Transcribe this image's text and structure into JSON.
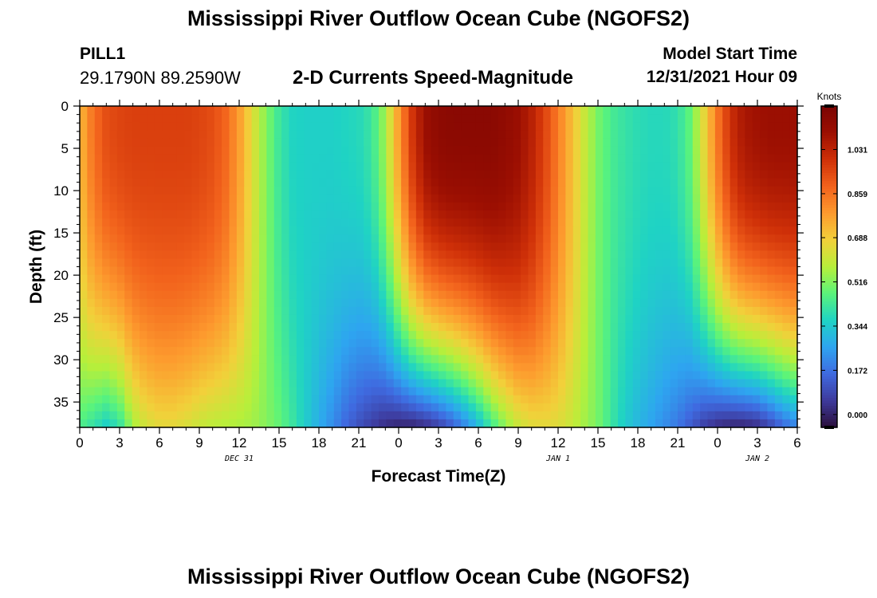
{
  "header": {
    "title": "Mississippi River Outflow Ocean Cube (NGOFS2)",
    "station_id": "PILL1",
    "station_coords": "29.1790N  89.2590W",
    "chart_title": "2-D Currents Speed-Magnitude",
    "model_start_label": "Model Start Time",
    "model_start_value": "12/31/2021 Hour 09"
  },
  "footer": {
    "title": "Mississippi River Outflow Ocean Cube (NGOFS2)"
  },
  "chart_data": {
    "type": "heatmap",
    "title": "2-D Currents Speed-Magnitude",
    "xlabel": "Forecast Time(Z)",
    "ylabel": "Depth (ft)",
    "x_range_hours": [
      0,
      54
    ],
    "x_ticks": [
      "0",
      "3",
      "6",
      "9",
      "12",
      "15",
      "18",
      "21",
      "0",
      "3",
      "6",
      "9",
      "12",
      "15",
      "18",
      "21",
      "0",
      "3",
      "6"
    ],
    "date_labels": [
      {
        "label": "DEC 31",
        "hour": 12
      },
      {
        "label": "JAN 1",
        "hour": 36
      },
      {
        "label": "JAN 2",
        "hour": 51
      }
    ],
    "ylim": [
      0,
      38
    ],
    "y_ticks": [
      0,
      5,
      10,
      15,
      20,
      25,
      30,
      35
    ],
    "colorbar": {
      "title": "Knots",
      "ticks": [
        "1.031",
        "0.859",
        "0.688",
        "0.516",
        "0.344",
        "0.172",
        "0.000"
      ],
      "min": -0.05,
      "max": 1.2,
      "colors": [
        "#2b0f3c",
        "#3e3a9c",
        "#3f6ae0",
        "#2ea5f0",
        "#1fd3c4",
        "#5bf47a",
        "#b8ef3a",
        "#f2d03a",
        "#fd9a2e",
        "#f2621c",
        "#cf3008",
        "#9c0f02",
        "#7a0403"
      ]
    },
    "time_series_hours": [
      0,
      1,
      2,
      3,
      4,
      5,
      6,
      7,
      8,
      9,
      10,
      11,
      12,
      13,
      14,
      15,
      16,
      17,
      18,
      19,
      20,
      21,
      22,
      23,
      24,
      25,
      26,
      27,
      28,
      29,
      30,
      31,
      32,
      33,
      34,
      35,
      36,
      37,
      38,
      39,
      40,
      41,
      42,
      43,
      44,
      45,
      46,
      47,
      48,
      49,
      50,
      51,
      52,
      53,
      54
    ],
    "surface_speed_knots": [
      0.72,
      0.86,
      0.93,
      0.95,
      0.96,
      0.96,
      0.96,
      0.96,
      0.96,
      0.95,
      0.93,
      0.88,
      0.78,
      0.64,
      0.52,
      0.42,
      0.37,
      0.36,
      0.36,
      0.36,
      0.37,
      0.38,
      0.42,
      0.55,
      0.78,
      0.98,
      1.1,
      1.14,
      1.15,
      1.15,
      1.15,
      1.15,
      1.13,
      1.1,
      1.04,
      0.95,
      0.84,
      0.72,
      0.6,
      0.5,
      0.44,
      0.41,
      0.39,
      0.38,
      0.38,
      0.4,
      0.48,
      0.66,
      0.85,
      1.0,
      1.07,
      1.09,
      1.1,
      1.1,
      1.1
    ],
    "bottom_speed_knots": [
      0.45,
      0.4,
      0.35,
      0.4,
      0.55,
      0.62,
      0.65,
      0.65,
      0.63,
      0.6,
      0.58,
      0.57,
      0.56,
      0.55,
      0.52,
      0.48,
      0.42,
      0.35,
      0.28,
      0.22,
      0.15,
      0.1,
      0.06,
      0.02,
      0.0,
      0.0,
      0.02,
      0.06,
      0.12,
      0.2,
      0.3,
      0.42,
      0.52,
      0.6,
      0.64,
      0.65,
      0.64,
      0.6,
      0.55,
      0.5,
      0.42,
      0.35,
      0.3,
      0.26,
      0.22,
      0.18,
      0.12,
      0.06,
      0.02,
      0.0,
      0.0,
      0.02,
      0.08,
      0.15,
      0.2
    ]
  }
}
